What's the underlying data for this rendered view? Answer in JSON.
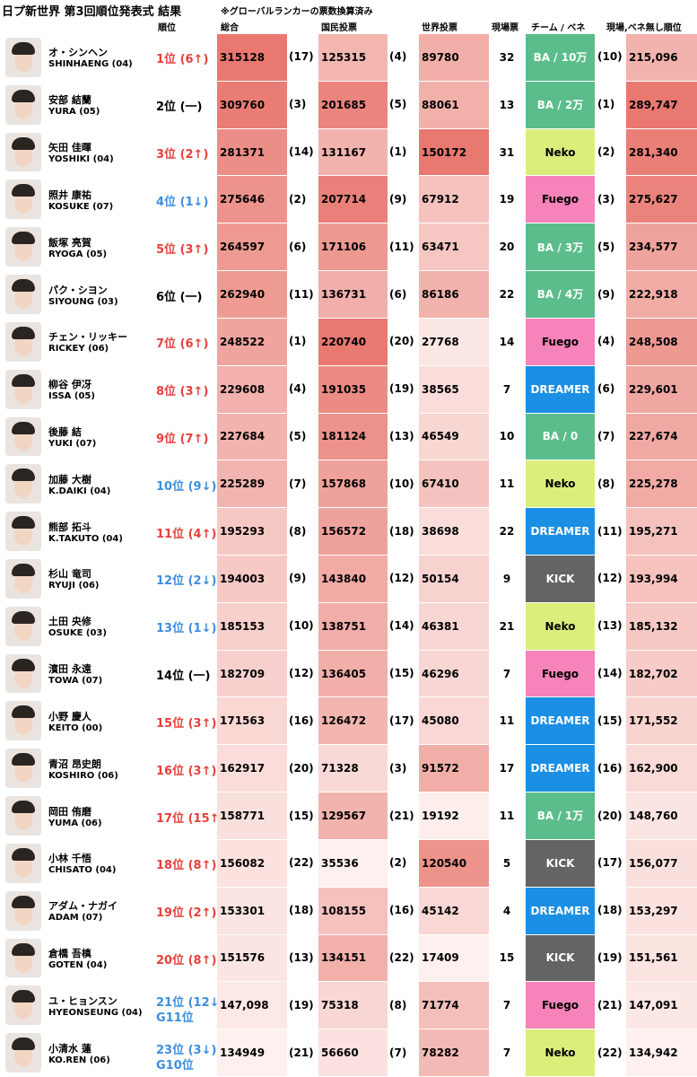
{
  "header": {
    "title": "日プ新世界 第3回順位発表式 結果",
    "note": "※グローバルランカーの票数換算済み"
  },
  "table": {
    "columns": {
      "rank": "順位",
      "total": "総合",
      "national": "国民投票",
      "world": "世界投票",
      "onsite": "現場票",
      "team": "チーム / ベネ",
      "adj": "現場,ベネ無し順位"
    },
    "rows": [
      {
        "name": "オ・シンヘン",
        "name_en": "SHINHAENG (04)",
        "rank": "1位 (6↑)",
        "rank_color": "#e8403a",
        "total": "315128",
        "total_rank": "(17)",
        "national": "125315",
        "national_rank": "(4)",
        "world": "89780",
        "onsite": "32",
        "team": "BA / 10万",
        "team_color": "#5bbd8b",
        "adj_rank": "(10)",
        "adj_total": "215,096"
      },
      {
        "name": "安部 結蘭",
        "name_en": "YURA (05)",
        "rank": "2位 (一)",
        "rank_color": "#000000",
        "total": "309760",
        "total_rank": "(3)",
        "national": "201685",
        "national_rank": "(5)",
        "world": "88061",
        "onsite": "13",
        "team": "BA / 2万",
        "team_color": "#5bbd8b",
        "adj_rank": "(1)",
        "adj_total": "289,747"
      },
      {
        "name": "矢田 佳暉",
        "name_en": "YOSHIKI (04)",
        "rank": "3位 (2↑)",
        "rank_color": "#e8403a",
        "total": "281371",
        "total_rank": "(14)",
        "national": "131167",
        "national_rank": "(1)",
        "world": "150172",
        "onsite": "31",
        "team": "Neko",
        "team_color": "#dbee7c",
        "adj_rank": "(2)",
        "adj_total": "281,340"
      },
      {
        "name": "照井 康祐",
        "name_en": "KOSUKE (07)",
        "rank": "4位 (1↓)",
        "rank_color": "#3b8fe0",
        "total": "275646",
        "total_rank": "(2)",
        "national": "207714",
        "national_rank": "(9)",
        "world": "67912",
        "onsite": "19",
        "team": "Fuego",
        "team_color": "#f683ba",
        "adj_rank": "(3)",
        "adj_total": "275,627"
      },
      {
        "name": "飯塚 亮賀",
        "name_en": "RYOGA (05)",
        "rank": "5位 (3↑)",
        "rank_color": "#e8403a",
        "total": "264597",
        "total_rank": "(6)",
        "national": "171106",
        "national_rank": "(11)",
        "world": "63471",
        "onsite": "20",
        "team": "BA / 3万",
        "team_color": "#5bbd8b",
        "adj_rank": "(5)",
        "adj_total": "234,577"
      },
      {
        "name": "パク・シヨン",
        "name_en": "SIYOUNG (03)",
        "rank": "6位 (一)",
        "rank_color": "#000000",
        "total": "262940",
        "total_rank": "(11)",
        "national": "136731",
        "national_rank": "(6)",
        "world": "86186",
        "onsite": "22",
        "team": "BA / 4万",
        "team_color": "#5bbd8b",
        "adj_rank": "(9)",
        "adj_total": "222,918"
      },
      {
        "name": "チェン・リッキー",
        "name_en": "RICKEY (06)",
        "rank": "7位 (6↑)",
        "rank_color": "#e8403a",
        "total": "248522",
        "total_rank": "(1)",
        "national": "220740",
        "national_rank": "(20)",
        "world": "27768",
        "onsite": "14",
        "team": "Fuego",
        "team_color": "#f683ba",
        "adj_rank": "(4)",
        "adj_total": "248,508"
      },
      {
        "name": "柳谷 伊冴",
        "name_en": "ISSA (05)",
        "rank": "8位 (3↑)",
        "rank_color": "#e8403a",
        "total": "229608",
        "total_rank": "(4)",
        "national": "191035",
        "national_rank": "(19)",
        "world": "38565",
        "onsite": "7",
        "team": "DREAMER",
        "team_color": "#1b8fe3",
        "adj_rank": "(6)",
        "adj_total": "229,601"
      },
      {
        "name": "後藤 結",
        "name_en": "YUKI (07)",
        "rank": "9位 (7↑)",
        "rank_color": "#e8403a",
        "total": "227684",
        "total_rank": "(5)",
        "national": "181124",
        "national_rank": "(13)",
        "world": "46549",
        "onsite": "10",
        "team": "BA / 0",
        "team_color": "#5bbd8b",
        "adj_rank": "(7)",
        "adj_total": "227,674"
      },
      {
        "name": "加藤 大樹",
        "name_en": "K.DAIKI (04)",
        "rank": "10位 (9↓)",
        "rank_color": "#3b8fe0",
        "total": "225289",
        "total_rank": "(7)",
        "national": "157868",
        "national_rank": "(10)",
        "world": "67410",
        "onsite": "11",
        "team": "Neko",
        "team_color": "#dbee7c",
        "adj_rank": "(8)",
        "adj_total": "225,278"
      },
      {
        "name": "熊部 拓斗",
        "name_en": "K.TAKUTO (04)",
        "rank": "11位 (4↑)",
        "rank_color": "#e8403a",
        "total": "195293",
        "total_rank": "(8)",
        "national": "156572",
        "national_rank": "(18)",
        "world": "38698",
        "onsite": "22",
        "team": "DREAMER",
        "team_color": "#1b8fe3",
        "adj_rank": "(11)",
        "adj_total": "195,271"
      },
      {
        "name": "杉山 竜司",
        "name_en": "RYUJI (06)",
        "rank": "12位 (2↓)",
        "rank_color": "#3b8fe0",
        "total": "194003",
        "total_rank": "(9)",
        "national": "143840",
        "national_rank": "(12)",
        "world": "50154",
        "onsite": "9",
        "team": "KICK",
        "team_color": "#646464",
        "adj_rank": "(12)",
        "adj_total": "193,994"
      },
      {
        "name": "土田 央修",
        "name_en": "OSUKE (03)",
        "rank": "13位 (1↓)",
        "rank_color": "#3b8fe0",
        "total": "185153",
        "total_rank": "(10)",
        "national": "138751",
        "national_rank": "(14)",
        "world": "46381",
        "onsite": "21",
        "team": "Neko",
        "team_color": "#dbee7c",
        "adj_rank": "(13)",
        "adj_total": "185,132"
      },
      {
        "name": "濱田 永遠",
        "name_en": "TOWA (07)",
        "rank": "14位 (一)",
        "rank_color": "#000000",
        "total": "182709",
        "total_rank": "(12)",
        "national": "136405",
        "national_rank": "(15)",
        "world": "46296",
        "onsite": "7",
        "team": "Fuego",
        "team_color": "#f683ba",
        "adj_rank": "(14)",
        "adj_total": "182,702"
      },
      {
        "name": "小野 慶人",
        "name_en": "KEITO (00)",
        "rank": "15位 (3↑)",
        "rank_color": "#e8403a",
        "total": "171563",
        "total_rank": "(16)",
        "national": "126472",
        "national_rank": "(17)",
        "world": "45080",
        "onsite": "11",
        "team": "DREAMER",
        "team_color": "#1b8fe3",
        "adj_rank": "(15)",
        "adj_total": "171,552"
      },
      {
        "name": "青沼 昂史朗",
        "name_en": "KOSHIRO (06)",
        "rank": "16位 (3↑)",
        "rank_color": "#e8403a",
        "total": "162917",
        "total_rank": "(20)",
        "national": "71328",
        "national_rank": "(3)",
        "world": "91572",
        "onsite": "17",
        "team": "DREAMER",
        "team_color": "#1b8fe3",
        "adj_rank": "(16)",
        "adj_total": "162,900"
      },
      {
        "name": "岡田 侑磨",
        "name_en": "YUMA (06)",
        "rank": "17位 (15↑)",
        "rank_color": "#e8403a",
        "total": "158771",
        "total_rank": "(15)",
        "national": "129567",
        "national_rank": "(21)",
        "world": "19192",
        "onsite": "11",
        "team": "BA / 1万",
        "team_color": "#5bbd8b",
        "adj_rank": "(20)",
        "adj_total": "148,760"
      },
      {
        "name": "小林 千悟",
        "name_en": "CHISATO (04)",
        "rank": "18位 (8↑)",
        "rank_color": "#e8403a",
        "total": "156082",
        "total_rank": "(22)",
        "national": "35536",
        "national_rank": "(2)",
        "world": "120540",
        "onsite": "5",
        "team": "KICK",
        "team_color": "#646464",
        "adj_rank": "(17)",
        "adj_total": "156,077"
      },
      {
        "name": "アダム・ナガイ",
        "name_en": "ADAM (07)",
        "rank": "19位 (2↑)",
        "rank_color": "#e8403a",
        "total": "153301",
        "total_rank": "(18)",
        "national": "108155",
        "national_rank": "(16)",
        "world": "45142",
        "onsite": "4",
        "team": "DREAMER",
        "team_color": "#1b8fe3",
        "adj_rank": "(18)",
        "adj_total": "153,297"
      },
      {
        "name": "倉橋 吾槙",
        "name_en": "GOTEN (04)",
        "rank": "20位 (8↑)",
        "rank_color": "#e8403a",
        "total": "151576",
        "total_rank": "(13)",
        "national": "134151",
        "national_rank": "(22)",
        "world": "17409",
        "onsite": "15",
        "team": "KICK",
        "team_color": "#646464",
        "adj_rank": "(19)",
        "adj_total": "151,561"
      },
      {
        "name": "ユ・ヒョンスン",
        "name_en": "HYEONSEUNG (04)",
        "rank": "21位 (12↓)",
        "rank_note": "G11位",
        "rank_color": "#3b8fe0",
        "total": "147,098",
        "total_rank": "(19)",
        "national": "75318",
        "national_rank": "(8)",
        "world": "71774",
        "onsite": "7",
        "team": "Fuego",
        "team_color": "#f683ba",
        "adj_rank": "(21)",
        "adj_total": "147,091"
      },
      {
        "name": "小清水 蓮",
        "name_en": "KO.REN (06)",
        "rank": "23位 (3↓)",
        "rank_note": "G10位",
        "rank_color": "#3b8fe0",
        "total": "134949",
        "total_rank": "(21)",
        "national": "56660",
        "national_rank": "(7)",
        "world": "78282",
        "onsite": "7",
        "team": "Neko",
        "team_color": "#dbee7c",
        "adj_rank": "(22)",
        "adj_total": "134,942"
      }
    ]
  }
}
